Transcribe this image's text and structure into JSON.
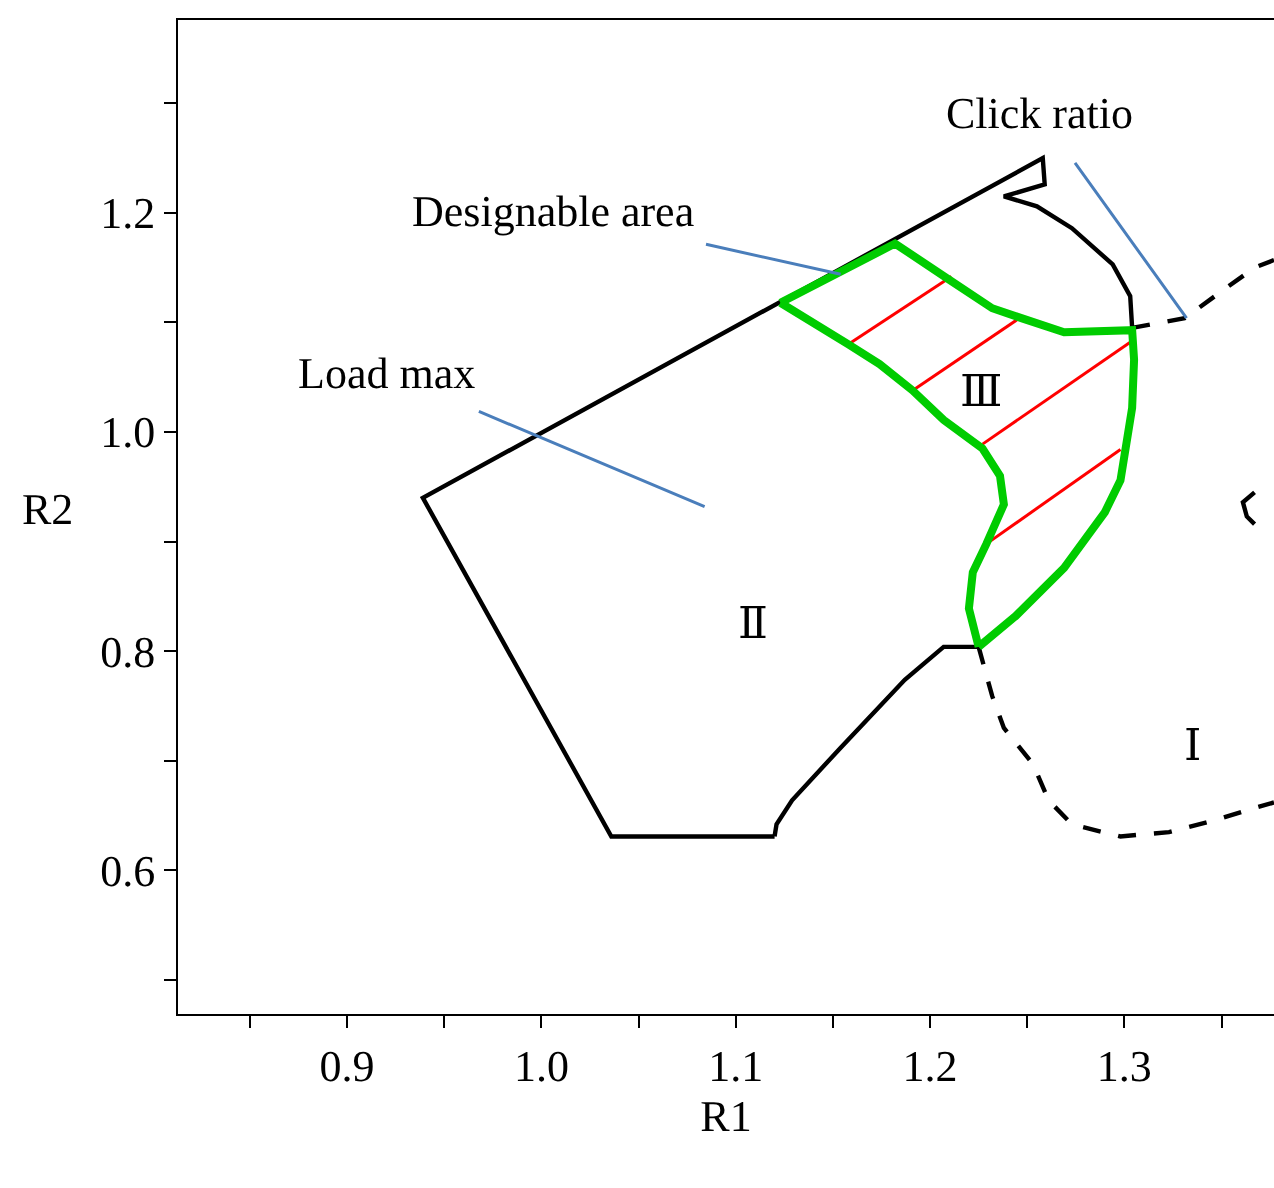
{
  "chart_data": {
    "type": "line",
    "xlabel": "R1",
    "ylabel": "R2",
    "xlim": [
      0.813,
      1.377
    ],
    "ylim": [
      0.469,
      1.376
    ],
    "xticks": [
      {
        "value": 0.85,
        "label": null
      },
      0.9,
      {
        "value": 0.95,
        "label": null
      },
      {
        "value": 1,
        "label": "1.0"
      },
      {
        "value": 1.05,
        "label": null
      },
      1.1,
      {
        "value": 1.15,
        "label": null
      },
      1.2,
      {
        "value": 1.25,
        "label": null
      },
      1.3,
      {
        "value": 1.35,
        "label": null
      }
    ],
    "yticks": [
      {
        "value": 0.5,
        "label": null
      },
      0.6,
      {
        "value": 0.7,
        "label": null
      },
      0.8,
      {
        "value": 0.9,
        "label": null
      },
      {
        "value": 1,
        "label": "1.0"
      },
      {
        "value": 1.1,
        "label": null
      },
      1.2,
      {
        "value": 1.3,
        "label": null
      }
    ],
    "grid": false,
    "marker": "none",
    "series": [
      {
        "color": "#000000",
        "line_style": "solid",
        "x": [
          1.304,
          1.303,
          1.294,
          1.273,
          1.255,
          1.238,
          1.259,
          1.258,
          0.939,
          1.036,
          1.12,
          null,
          1.12,
          1.121,
          1.129,
          1.154,
          1.187,
          1.207,
          1.225
        ],
        "values": [
          1.095,
          1.124,
          1.153,
          1.186,
          1.206,
          1.215,
          1.226,
          1.25,
          0.94,
          0.631,
          0.631,
          null,
          0.631,
          0.642,
          0.664,
          0.712,
          0.774,
          0.804,
          0.804
        ]
      },
      {
        "color": "#000000",
        "line_style": "solid",
        "x": [
          1.367,
          1.361,
          1.363,
          1.367
        ],
        "values": [
          0.945,
          0.936,
          0.923,
          0.916
        ]
      },
      {
        "color": "#000000",
        "line_style": "dashed",
        "x": [
          1.225,
          1.232,
          1.238,
          1.253,
          1.261,
          1.273,
          1.298,
          1.323,
          1.347,
          1.367,
          1.377
        ],
        "values": [
          0.804,
          0.759,
          0.73,
          0.697,
          0.664,
          0.642,
          0.631,
          0.635,
          0.646,
          0.657,
          0.662
        ]
      },
      {
        "color": "#000000",
        "line_style": "dashed",
        "x": [
          1.304,
          1.331,
          1.352,
          1.367,
          1.377
        ],
        "values": [
          1.095,
          1.104,
          1.131,
          1.15,
          1.157
        ]
      },
      {
        "color": "#ff0000",
        "line_style": "solid",
        "x": [
          1.157,
          1.211,
          null,
          1.192,
          1.246,
          null,
          1.227,
          1.303,
          null,
          1.229,
          1.298
        ],
        "values": [
          1.079,
          1.142,
          null,
          1.039,
          1.104,
          null,
          0.989,
          1.082,
          null,
          0.898,
          0.984
        ]
      },
      {
        "color": "#00cc00",
        "line_style": "solid",
        "x": [
          1.123,
          1.182,
          1.209,
          1.232,
          1.247,
          1.269,
          1.304,
          1.305,
          1.304,
          1.298,
          1.29,
          1.269,
          1.244,
          1.225
        ],
        "values": [
          1.118,
          1.172,
          1.14,
          1.113,
          1.104,
          1.091,
          1.093,
          1.066,
          1.022,
          0.956,
          0.927,
          0.876,
          0.832,
          0.804
        ]
      },
      {
        "color": "#00cc00",
        "line_style": "solid",
        "x": [
          1.225,
          1.22,
          1.222,
          1.229,
          1.238,
          1.236,
          1.227,
          1.207,
          1.191,
          1.174,
          1.158,
          1.123
        ],
        "values": [
          0.804,
          0.839,
          0.872,
          0.898,
          0.934,
          0.96,
          0.985,
          1.011,
          1.038,
          1.062,
          1.08,
          1.118
        ]
      }
    ],
    "annotations": [
      {
        "text": "Designable area",
        "x": 1.154,
        "y": 1.144
      },
      {
        "text": "Click ratio",
        "x": 1.332,
        "y": 1.104
      },
      "Load max",
      "Ⅱ",
      "Ⅲ",
      "Ⅰ"
    ]
  }
}
